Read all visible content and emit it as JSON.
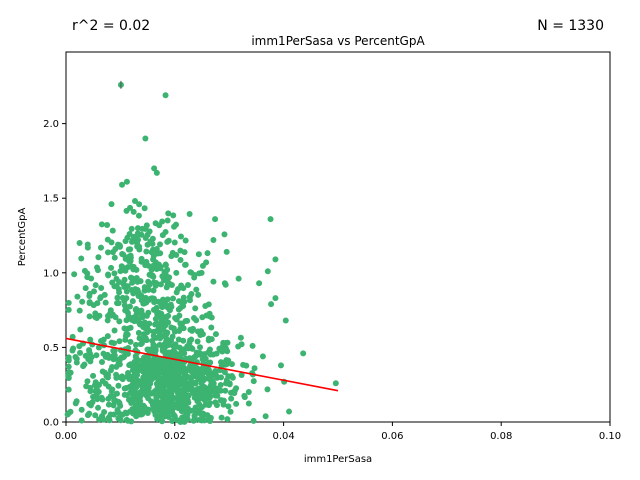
{
  "chart_data": {
    "type": "scatter",
    "title": "imm1PerSasa vs PercentGpA",
    "xlabel": "imm1PerSasa",
    "ylabel": "PercentGpA",
    "r_squared_label": "r^2 = 0.02",
    "n_label": "N = 1330",
    "xlim": [
      0,
      0.1
    ],
    "ylim": [
      0,
      2.48
    ],
    "xticks": [
      0.0,
      0.02,
      0.04,
      0.06,
      0.08,
      0.1
    ],
    "xtick_labels": [
      "0.00",
      "0.02",
      "0.04",
      "0.06",
      "0.08",
      "0.10"
    ],
    "yticks": [
      0.0,
      0.5,
      1.0,
      1.5,
      2.0
    ],
    "ytick_labels": [
      "0.0",
      "0.5",
      "1.0",
      "1.5",
      "2.0"
    ],
    "grid": false,
    "point_color": "#3cb371",
    "fit_color": "#ff0000",
    "fit_line": {
      "x": [
        0.0,
        0.05
      ],
      "y": [
        0.56,
        0.21
      ]
    },
    "outlier_points": [
      {
        "x": 0.0101,
        "y": 2.26
      },
      {
        "x": 0.0183,
        "y": 2.19
      },
      {
        "x": 0.0146,
        "y": 1.9
      },
      {
        "x": 0.0162,
        "y": 1.7
      },
      {
        "x": 0.0167,
        "y": 1.67
      },
      {
        "x": 0.0103,
        "y": 1.59
      },
      {
        "x": 0.0112,
        "y": 1.61
      },
      {
        "x": 0.0376,
        "y": 1.36
      },
      {
        "x": 0.0274,
        "y": 1.36
      },
      {
        "x": 0.0385,
        "y": 1.09
      },
      {
        "x": 0.0371,
        "y": 1.01
      },
      {
        "x": 0.0355,
        "y": 0.93
      },
      {
        "x": 0.0385,
        "y": 0.83
      },
      {
        "x": 0.0377,
        "y": 0.79
      },
      {
        "x": 0.0404,
        "y": 0.68
      },
      {
        "x": 0.0436,
        "y": 0.46
      },
      {
        "x": 0.0496,
        "y": 0.26
      },
      {
        "x": 0.0015,
        "y": 0.99
      },
      {
        "x": 0.0021,
        "y": 0.84
      },
      {
        "x": 0.0025,
        "y": 1.2
      },
      {
        "x": 0.004,
        "y": 1.19
      },
      {
        "x": 0.0271,
        "y": 1.22
      },
      {
        "x": 0.0268,
        "y": 0.7
      },
      {
        "x": 0.0292,
        "y": 0.93
      },
      {
        "x": 0.0004,
        "y": 0.31
      },
      {
        "x": 0.0003,
        "y": 0.05
      },
      {
        "x": 0.041,
        "y": 0.07
      },
      {
        "x": 0.0401,
        "y": 0.27
      },
      {
        "x": 0.0362,
        "y": 0.44
      },
      {
        "x": 0.0343,
        "y": 0.51
      }
    ],
    "clusters": [
      {
        "cx": 0.019,
        "cy": 0.26,
        "sx": 0.0065,
        "sy": 0.15,
        "count": 780
      },
      {
        "cx": 0.016,
        "cy": 0.72,
        "sx": 0.006,
        "sy": 0.2,
        "count": 320
      },
      {
        "cx": 0.0145,
        "cy": 1.15,
        "sx": 0.0045,
        "sy": 0.15,
        "count": 130
      },
      {
        "cx": 0.006,
        "cy": 0.4,
        "sx": 0.003,
        "sy": 0.3,
        "count": 70
      }
    ]
  }
}
